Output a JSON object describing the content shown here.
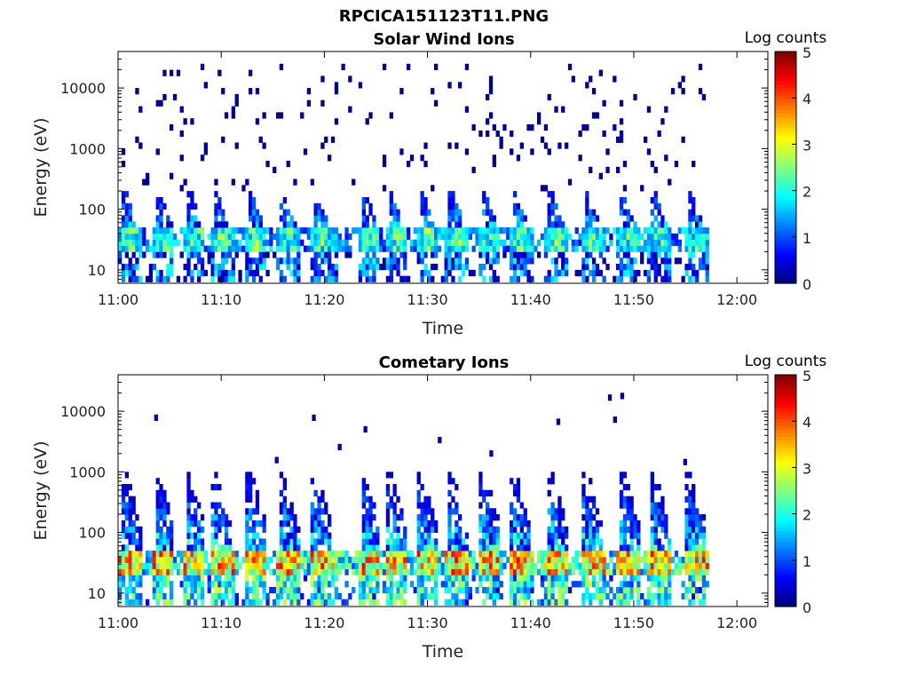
{
  "figure": {
    "title": "RPCICA151123T11.PNG"
  },
  "chart_data": [
    {
      "type": "heatmap",
      "title": "Solar Wind Ions",
      "xlabel": "Time",
      "ylabel": "Energy (eV)",
      "x_tick_labels": [
        "11:00",
        "11:10",
        "11:20",
        "11:30",
        "11:40",
        "11:50",
        "12:00"
      ],
      "x_tick_minutes": [
        0,
        10,
        20,
        30,
        40,
        50,
        60
      ],
      "xlim_minutes": [
        0,
        63
      ],
      "data_extent_minutes": [
        0,
        57
      ],
      "y_scale": "log",
      "ylim": [
        6,
        40000
      ],
      "y_tick_labels": [
        "10",
        "100",
        "1000",
        "10000"
      ],
      "y_tick_values": [
        10,
        100,
        1000,
        10000
      ],
      "colorbar": {
        "label": "Log counts",
        "ticks": [
          "0",
          "1",
          "2",
          "3",
          "4",
          "5"
        ],
        "range": [
          0,
          5
        ]
      },
      "colormap": "jet",
      "grid": false,
      "pulse_minutes": [
        0.5,
        3.8,
        6.8,
        9.3,
        12.7,
        15.8,
        19.0,
        23.8,
        26.3,
        29.3,
        32.2,
        35.3,
        38.3,
        41.8,
        45.3,
        48.8,
        51.8,
        55.3
      ],
      "features": {
        "peak_energy_eV": [
          20,
          40
        ],
        "peak_log_counts": 3,
        "background": "scattered single counts from 10 eV to ~30000 eV"
      }
    },
    {
      "type": "heatmap",
      "title": "Cometary Ions",
      "xlabel": "Time",
      "ylabel": "Energy (eV)",
      "x_tick_labels": [
        "11:00",
        "11:10",
        "11:20",
        "11:30",
        "11:40",
        "11:50",
        "12:00"
      ],
      "x_tick_minutes": [
        0,
        10,
        20,
        30,
        40,
        50,
        60
      ],
      "xlim_minutes": [
        0,
        63
      ],
      "data_extent_minutes": [
        0,
        57
      ],
      "y_scale": "log",
      "ylim": [
        6,
        40000
      ],
      "y_tick_labels": [
        "10",
        "100",
        "1000",
        "10000"
      ],
      "y_tick_values": [
        10,
        100,
        1000,
        10000
      ],
      "colorbar": {
        "label": "Log counts",
        "ticks": [
          "0",
          "1",
          "2",
          "3",
          "4",
          "5"
        ],
        "range": [
          0,
          5
        ]
      },
      "colormap": "jet",
      "grid": false,
      "pulse_minutes": [
        0.5,
        3.8,
        6.8,
        9.3,
        12.7,
        15.8,
        19.0,
        23.8,
        26.3,
        29.3,
        32.2,
        35.3,
        38.3,
        41.8,
        45.3,
        48.8,
        51.8,
        55.3
      ],
      "features": {
        "peak_energy_eV": [
          20,
          40
        ],
        "peak_log_counts": 4,
        "plume_max_energy_eV": 1000,
        "isolated_counts_eV": [
          7000,
          7000,
          2300,
          4500,
          1400,
          3000,
          1800,
          6000,
          15000,
          16000,
          6500,
          1300
        ]
      }
    }
  ]
}
